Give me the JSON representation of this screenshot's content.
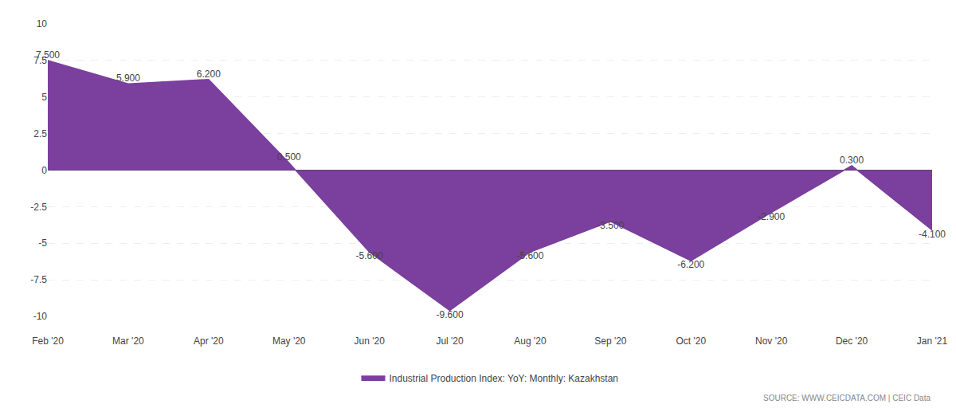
{
  "chart_data": {
    "type": "area",
    "categories": [
      "Feb '20",
      "Mar '20",
      "Apr '20",
      "May '20",
      "Jun '20",
      "Jul '20",
      "Aug '20",
      "Sep '20",
      "Oct '20",
      "Nov '20",
      "Dec '20",
      "Jan '21"
    ],
    "series": [
      {
        "name": "Industrial Production Index: YoY: Monthly: Kazakhstan",
        "color": "#7B3F9E",
        "values": [
          7.5,
          5.9,
          6.2,
          0.5,
          -5.6,
          -9.6,
          -5.6,
          -3.5,
          -6.2,
          -2.9,
          0.3,
          -4.1
        ],
        "value_labels": [
          "7.500",
          "5.900",
          "6.200",
          "0.500",
          "-5.600",
          "-9.600",
          "-5.600",
          "-3.500",
          "-6.200",
          "-2.900",
          "0.300",
          "-4.100"
        ]
      }
    ],
    "ylim": [
      -10,
      10
    ],
    "yticks": [
      -10,
      -7.5,
      -5,
      -2.5,
      0,
      2.5,
      5,
      7.5,
      10
    ],
    "grid": true,
    "data_labels": true,
    "legend": "bottom",
    "annotations": [
      "SOURCE: WWW.CEICDATA.COM | CEIC Data"
    ]
  }
}
